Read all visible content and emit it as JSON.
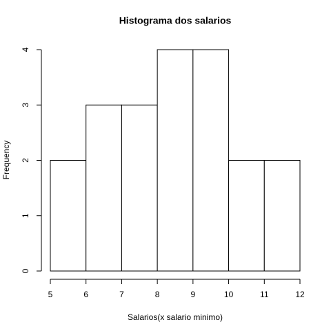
{
  "chart_data": {
    "type": "histogram",
    "title": "Histograma dos salarios",
    "x_label": "Salarios(x salario minimo)",
    "y_label": "Frequency",
    "bins": [
      5,
      6,
      7,
      8,
      9,
      10,
      11,
      12
    ],
    "counts": [
      2,
      3,
      3,
      4,
      4,
      2,
      2
    ],
    "color": "#ffffff",
    "edge_color": "#000000",
    "xlim": [
      5,
      12
    ],
    "xticks": [
      5,
      6,
      7,
      8,
      9,
      10,
      11,
      12
    ],
    "ylim": [
      0,
      4
    ],
    "yticks": [
      0,
      1,
      2,
      3,
      4
    ]
  }
}
